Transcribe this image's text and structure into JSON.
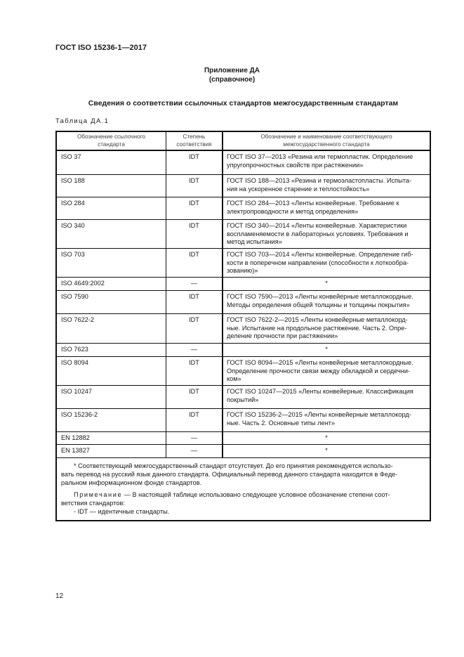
{
  "header": {
    "doc_code": "ГОСТ ISO 15236-1—2017"
  },
  "appendix": {
    "title": "Приложение ДА",
    "subtitle": "(справочное)"
  },
  "section_title": "Сведения о соответствии ссылочных стандартов межгосударственным стандартам",
  "table": {
    "label": "Таблица ДА.1",
    "columns": [
      "Обозначение ссылочного\nстандарта",
      "Степень\nсоответствия",
      "Обозначение и наименование соответствующего\nмежгосударственного стандарта"
    ],
    "rows": [
      {
        "ref": "ISO 37",
        "degree": "IDT",
        "gost": "ГОСТ ISO 37—2013 «Резина или термопластик. Определение\nупругопрочностных свойств при растяжении»"
      },
      {
        "ref": "ISO 188",
        "degree": "IDT",
        "gost": "ГОСТ ISO 188—2013 «Резина и термоэластопласты. Испыта-\nния на ускоренное старение и теплостойкость»"
      },
      {
        "ref": "ISO 284",
        "degree": "IDT",
        "gost": "ГОСТ ISO 284—2013 «Ленты конвейерные. Требование к\nэлектропроводности и метод определения»"
      },
      {
        "ref": "ISO 340",
        "degree": "IDT",
        "gost": "ГОСТ ISO 340—2014 «Ленты конвейерные. Характеристики\nвоспламеняемости в лабораторных условиях. Требования и\nметод испытания»"
      },
      {
        "ref": "ISO 703",
        "degree": "IDT",
        "gost": "ГОСТ ISO 703—2014 «Ленты конвейерные. Определение гиб-\nкости в поперечном направлении (способности к лоткообра-\nзованию)»"
      },
      {
        "ref": "ISO 4649:2002",
        "degree": "—",
        "gost": "*"
      },
      {
        "ref": "ISO 7590",
        "degree": "IDT",
        "gost": "ГОСТ ISO 7590—2013 «Ленты конвейерные металлокордные.\nМетоды определения общей толщины и толщины покрытия»"
      },
      {
        "ref": "ISO 7622-2",
        "degree": "IDT",
        "gost": "ГОСТ ISO 7622-2—2015 «Ленты конвейерные металлокорд-\nные. Испытание на продольное растяжение. Часть 2. Опре-\nделение прочности при растяжении»"
      },
      {
        "ref": "ISO 7623",
        "degree": "—",
        "gost": "*"
      },
      {
        "ref": "ISO 8094",
        "degree": "IDT",
        "gost": "ГОСТ ISO 8094—2015 «Ленты конвейерные металлокордные.\nОпределение прочности связи между обкладкой и сердечни-\nком»"
      },
      {
        "ref": "ISO 10247",
        "degree": "IDT",
        "gost": "ГОСТ ISO 10247—2015 «Ленты конвейерные. Классификация\nпокрытий»"
      },
      {
        "ref": "ISO 15236-2",
        "degree": "IDT",
        "gost": "ГОСТ ISO 15236-2—2015 «Ленты конвейерные металлокорд-\nные. Часть 2. Основные типы лент»"
      },
      {
        "ref": "EN 12882",
        "degree": "—",
        "gost": "*"
      },
      {
        "ref": "EN 13827",
        "degree": "—",
        "gost": "*"
      }
    ],
    "footnote": "* Соответствующий межгосударственный стандарт отсутствует. До его принятия рекомендуется использо-\nвать перевод на русский язык данного стандарта. Официальный перевод данного стандарта находится в Феде-\nральном информационном фонде стандартов.",
    "note_label": "Примечание",
    "note_text": " — В настоящей таблице использовано следующее условное обозначение степени соот-\nветствия стандартов:",
    "note_item": "- IDT — идентичные стандарты."
  },
  "page_number": "12"
}
